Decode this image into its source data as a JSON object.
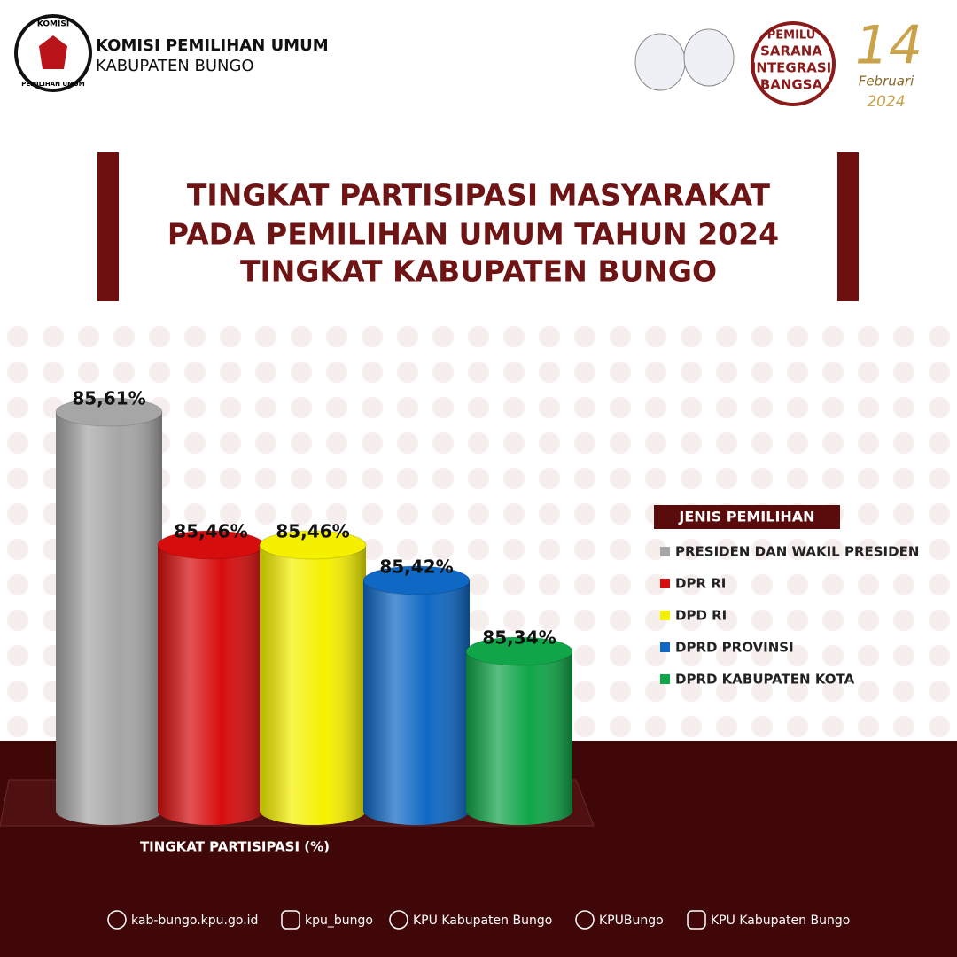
{
  "header": {
    "org": [
      "KOMISI PEMILIHAN UMUM",
      "KABUPATEN BUNGO"
    ],
    "emblem": [
      "KOMISI",
      "PEMILIHAN UMUM"
    ],
    "badge": [
      "PEMILU",
      "SARANA",
      "INTEGRASI",
      "BANGSA"
    ],
    "date": [
      "14",
      "Februari",
      "2024"
    ]
  },
  "chart_data": {
    "type": "bar",
    "title": [
      "TINGKAT PARTISIPASI MASYARAKAT",
      "PADA PEMILIHAN UMUM TAHUN 2024",
      "TINGKAT KABUPATEN BUNGO"
    ],
    "categories": [
      "PRESIDEN DAN WAKIL PRESIDEN",
      "DPR RI",
      "DPD RI",
      "DPRD PROVINSI",
      "DPRD KABUPATEN KOTA"
    ],
    "values": [
      85.61,
      85.46,
      85.46,
      85.42,
      85.34
    ],
    "value_labels": [
      "85,61%",
      "85,46%",
      "85,46%",
      "85,42%",
      "85,34%"
    ],
    "colors": [
      "#a6a6a6",
      "#d60d0d",
      "#f5f000",
      "#0f68c4",
      "#10a548"
    ],
    "ylim": [
      85.16,
      85.66
    ],
    "x_label": "TINGKAT PARTISIPASI (%)",
    "legend_title": "JENIS PEMILIHAN"
  },
  "footer": [
    "kab-bungo.kpu.go.id",
    "kpu_bungo",
    "KPU Kabupaten Bungo",
    "KPUBungo",
    "KPU Kabupaten Bungo"
  ]
}
